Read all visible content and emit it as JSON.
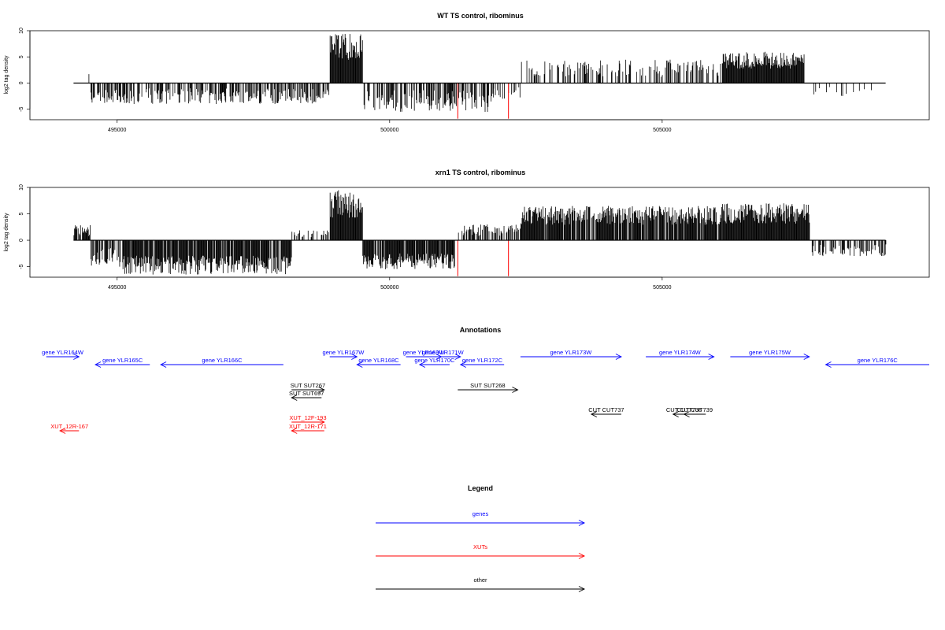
{
  "colors": {
    "gene": "#0000ff",
    "xut": "#ff0000",
    "other": "#000000",
    "highlight": "#ff0000",
    "bar": "#000000"
  },
  "chart_data": [
    {
      "type": "bar",
      "title": "WT TS control, ribominus",
      "ylabel": "log2 tag density",
      "xlim": [
        493400,
        509900
      ],
      "ylim": [
        -7,
        10
      ],
      "xticks": [
        495000,
        500000,
        505000
      ],
      "yticks": [
        -5,
        0,
        5,
        10
      ],
      "xdomain": [
        494200,
        509100
      ],
      "highlight_positions": [
        501250,
        502180
      ],
      "region_profile": [
        {
          "from": 494200,
          "to": 494500,
          "sign": 1,
          "max": 2.5,
          "density": 0.05
        },
        {
          "from": 494500,
          "to": 498900,
          "sign": -1,
          "max": 4,
          "density": 0.5
        },
        {
          "from": 498900,
          "to": 499500,
          "sign": 1,
          "max": 9.5,
          "density": 1.0
        },
        {
          "from": 499500,
          "to": 501900,
          "sign": -1,
          "max": 5.5,
          "density": 0.6
        },
        {
          "from": 501900,
          "to": 502400,
          "sign": -1,
          "max": 3,
          "density": 0.3
        },
        {
          "from": 502400,
          "to": 506100,
          "sign": 1,
          "max": 4.5,
          "density": 0.35
        },
        {
          "from": 506100,
          "to": 507600,
          "sign": 1,
          "max": 6,
          "density": 1.0
        },
        {
          "from": 507600,
          "to": 508600,
          "sign": -1,
          "max": 2.5,
          "density": 0.2
        },
        {
          "from": 508600,
          "to": 509100,
          "sign": -1,
          "max": 2,
          "density": 0.1
        }
      ]
    },
    {
      "type": "bar",
      "title": "xrn1 TS control, ribominus",
      "ylabel": "log2 tag density",
      "xlim": [
        493400,
        509900
      ],
      "ylim": [
        -7,
        10
      ],
      "xticks": [
        495000,
        500000,
        505000
      ],
      "yticks": [
        -5,
        0,
        5,
        10
      ],
      "xdomain": [
        494200,
        509100
      ],
      "highlight_positions": [
        501250,
        502180
      ],
      "region_profile": [
        {
          "from": 494200,
          "to": 494500,
          "sign": 1,
          "max": 3,
          "density": 0.8
        },
        {
          "from": 494500,
          "to": 495100,
          "sign": -1,
          "max": 5,
          "density": 0.7
        },
        {
          "from": 495100,
          "to": 498200,
          "sign": -1,
          "max": 6.5,
          "density": 0.9
        },
        {
          "from": 498200,
          "to": 498900,
          "sign": 1,
          "max": 2,
          "density": 0.4
        },
        {
          "from": 498900,
          "to": 499500,
          "sign": 1,
          "max": 9.5,
          "density": 1.0
        },
        {
          "from": 499500,
          "to": 501200,
          "sign": -1,
          "max": 5.5,
          "density": 0.9
        },
        {
          "from": 501200,
          "to": 502400,
          "sign": 1,
          "max": 3,
          "density": 0.5
        },
        {
          "from": 502400,
          "to": 506100,
          "sign": 1,
          "max": 6.5,
          "density": 0.9
        },
        {
          "from": 506100,
          "to": 507700,
          "sign": 1,
          "max": 7,
          "density": 1.0
        },
        {
          "from": 507700,
          "to": 509100,
          "sign": -1,
          "max": 3,
          "density": 0.5
        }
      ]
    }
  ],
  "annotations": {
    "title": "Annotations",
    "items": [
      {
        "label": "gene YLR164W",
        "kind": "gene",
        "row": 0,
        "from": 493700,
        "to": 494300,
        "dir": 1
      },
      {
        "label": "gene YLR165C",
        "kind": "gene",
        "row": 1,
        "from": 494600,
        "to": 495600,
        "dir": -1
      },
      {
        "label": "gene YLR166C",
        "kind": "gene",
        "row": 1,
        "from": 495800,
        "to": 498050,
        "dir": -1
      },
      {
        "label": "gene YLR167W",
        "kind": "gene",
        "row": 0,
        "from": 498900,
        "to": 499400,
        "dir": 1
      },
      {
        "label": "gene YLR168C",
        "kind": "gene",
        "row": 1,
        "from": 499400,
        "to": 500200,
        "dir": -1
      },
      {
        "label": "gene YLR169W",
        "kind": "gene",
        "row": 0,
        "from": 500300,
        "to": 500950,
        "dir": 1
      },
      {
        "label": "gene YLR171W",
        "kind": "gene",
        "row": 0,
        "from": 500650,
        "to": 501300,
        "dir": 1
      },
      {
        "label": "gene YLR170C",
        "kind": "gene",
        "row": 1,
        "from": 500550,
        "to": 501100,
        "dir": -1
      },
      {
        "label": "gene YLR172C",
        "kind": "gene",
        "row": 1,
        "from": 501300,
        "to": 502100,
        "dir": -1
      },
      {
        "label": "gene YLR173W",
        "kind": "gene",
        "row": 0,
        "from": 502400,
        "to": 504250,
        "dir": 1
      },
      {
        "label": "gene YLR174W",
        "kind": "gene",
        "row": 0,
        "from": 504700,
        "to": 505950,
        "dir": 1
      },
      {
        "label": "gene YLR175W",
        "kind": "gene",
        "row": 0,
        "from": 506250,
        "to": 507700,
        "dir": 1
      },
      {
        "label": "gene YLR176C",
        "kind": "gene",
        "row": 1,
        "from": 508000,
        "to": 509900,
        "dir": -1
      },
      {
        "label": "SUT SUT267",
        "kind": "other",
        "row": 2,
        "from": 498200,
        "to": 498800,
        "dir": 1
      },
      {
        "label": "SUT SUT697",
        "kind": "other",
        "row": 3,
        "from": 498200,
        "to": 498750,
        "dir": -1
      },
      {
        "label": "SUT SUT268",
        "kind": "other",
        "row": 2,
        "from": 501250,
        "to": 502350,
        "dir": 1
      },
      {
        "label": "CUT CUT737",
        "kind": "other",
        "row": 4,
        "from": 503700,
        "to": 504250,
        "dir": -1
      },
      {
        "label": "CUT CUT738",
        "kind": "other",
        "row": 4,
        "from": 505200,
        "to": 505600,
        "dir": -1
      },
      {
        "label": "CUT CUT739",
        "kind": "other",
        "row": 4,
        "from": 505400,
        "to": 505800,
        "dir": -1
      },
      {
        "label": "XUT_12F-193",
        "kind": "xut",
        "row": 5,
        "from": 498200,
        "to": 498800,
        "dir": 1
      },
      {
        "label": "XUT_12R-171",
        "kind": "xut",
        "row": 6,
        "from": 498200,
        "to": 498800,
        "dir": -1
      },
      {
        "label": "XUT_12R-167",
        "kind": "xut",
        "row": 6,
        "from": 493950,
        "to": 494300,
        "dir": -1
      }
    ]
  },
  "legend": {
    "title": "Legend",
    "items": [
      {
        "label": "genes",
        "kind": "gene"
      },
      {
        "label": "XUTs",
        "kind": "xut"
      },
      {
        "label": "other",
        "kind": "other"
      }
    ]
  }
}
